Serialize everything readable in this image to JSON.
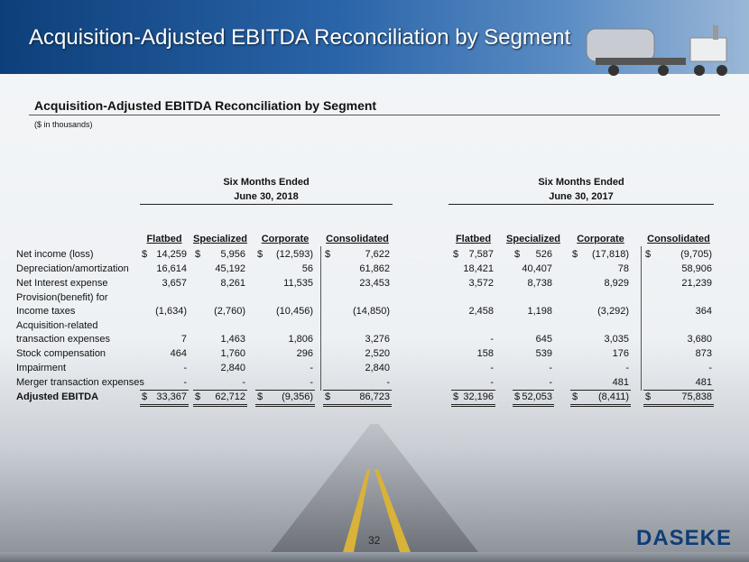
{
  "header": {
    "title": "Acquisition-Adjusted EBITDA Reconciliation by Segment"
  },
  "section": {
    "title": "Acquisition-Adjusted EBITDA Reconciliation by Segment",
    "note": "($ in thousands)"
  },
  "table": {
    "groups": [
      {
        "period": "Six Months Ended",
        "date": "June 30, 2018",
        "columns": [
          "Flatbed",
          "Specialized",
          "Corporate",
          "Consolidated"
        ]
      },
      {
        "period": "Six Months Ended",
        "date": "June 30, 2017",
        "columns": [
          "Flatbed",
          "Specialized",
          "Corporate",
          "Consolidated"
        ]
      }
    ],
    "rows": [
      {
        "label": [
          "Net income (loss)"
        ],
        "cells": [
          {
            "sign": "$",
            "value": "14,259"
          },
          {
            "sign": "$",
            "value": "5,956"
          },
          {
            "sign": "$",
            "value": "(12,593)"
          },
          {
            "sign": "$",
            "value": "7,622"
          },
          {
            "sign": "$",
            "value": "7,587"
          },
          {
            "sign": "$",
            "value": "526"
          },
          {
            "sign": "$",
            "value": "(17,818)"
          },
          {
            "sign": "$",
            "value": "(9,705)"
          }
        ]
      },
      {
        "label": [
          "Depreciation/amortization"
        ],
        "cells": [
          "16,614",
          "45,192",
          "56",
          "61,862",
          "18,421",
          "40,407",
          "78",
          "58,906"
        ]
      },
      {
        "label": [
          "Net Interest expense"
        ],
        "cells": [
          "3,657",
          "8,261",
          "11,535",
          "23,453",
          "3,572",
          "8,738",
          "8,929",
          "21,239"
        ]
      },
      {
        "label": [
          "Provision(benefit) for",
          "Income taxes"
        ],
        "cells": [
          "(1,634)",
          "(2,760)",
          "(10,456)",
          "(14,850)",
          "2,458",
          "1,198",
          "(3,292)",
          "364"
        ]
      },
      {
        "label": [
          "Acquisition-related",
          "transaction expenses"
        ],
        "cells": [
          "7",
          "1,463",
          "1,806",
          "3,276",
          "-",
          "645",
          "3,035",
          "3,680"
        ]
      },
      {
        "label": [
          "Stock compensation"
        ],
        "cells": [
          "464",
          "1,760",
          "296",
          "2,520",
          "158",
          "539",
          "176",
          "873"
        ]
      },
      {
        "label": [
          "Impairment"
        ],
        "cells": [
          "-",
          "2,840",
          "-",
          "2,840",
          "-",
          "-",
          "-",
          "-"
        ]
      },
      {
        "label": [
          "Merger transaction expenses"
        ],
        "cells": [
          "-",
          "-",
          "-",
          "-",
          "-",
          "-",
          "481",
          "481"
        ]
      },
      {
        "label": [
          "Adjusted EBITDA"
        ],
        "cells": [
          {
            "sign": "$",
            "value": "33,367"
          },
          {
            "sign": "$",
            "value": "62,712"
          },
          {
            "sign": "$",
            "value": "(9,356)"
          },
          {
            "sign": "$",
            "value": "86,723"
          },
          {
            "sign": "$",
            "value": "32,196"
          },
          {
            "sign": "$",
            "value": "52,053"
          },
          {
            "sign": "$",
            "value": "(8,411)"
          },
          {
            "sign": "$",
            "value": "75,838"
          }
        ]
      }
    ]
  },
  "footer": {
    "page": "32",
    "logo": "DASEKE"
  }
}
